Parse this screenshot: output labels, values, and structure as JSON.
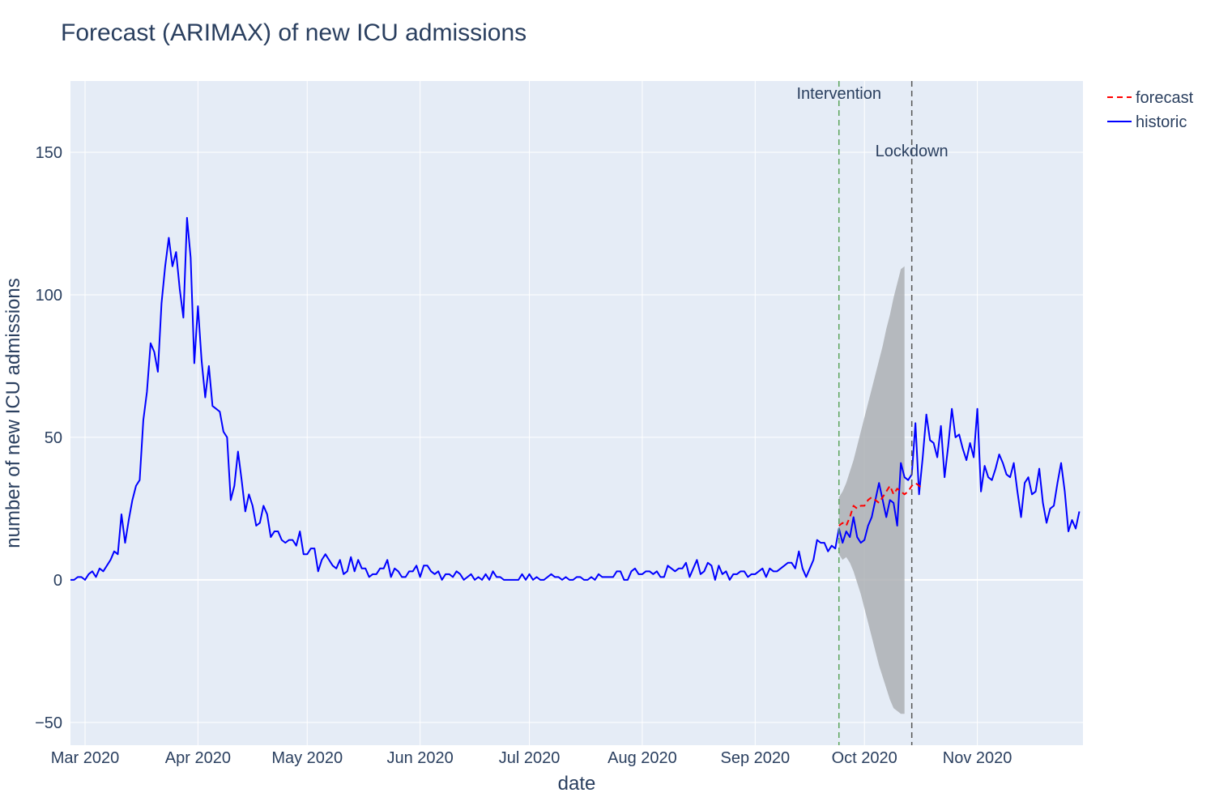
{
  "chart_data": {
    "type": "line",
    "title": "Forecast (ARIMAX) of new ICU admissions",
    "xlabel": "date",
    "ylabel": "number of new ICU admissions",
    "x_start_date": "2020-02-26",
    "ylim": [
      -58,
      175
    ],
    "y_ticks": [
      -50,
      0,
      50,
      100,
      150
    ],
    "y_tick_labels": [
      "−50",
      "0",
      "50",
      "100",
      "150"
    ],
    "x_ticks": [
      {
        "date": "2020-03-01",
        "label": "Mar 2020"
      },
      {
        "date": "2020-04-01",
        "label": "Apr 2020"
      },
      {
        "date": "2020-05-01",
        "label": "May 2020"
      },
      {
        "date": "2020-06-01",
        "label": "Jun 2020"
      },
      {
        "date": "2020-07-01",
        "label": "Jul 2020"
      },
      {
        "date": "2020-08-01",
        "label": "Aug 2020"
      },
      {
        "date": "2020-09-01",
        "label": "Sep 2020"
      },
      {
        "date": "2020-10-01",
        "label": "Oct 2020"
      },
      {
        "date": "2020-11-01",
        "label": "Nov 2020"
      }
    ],
    "xlim": [
      "2020-02-26",
      "2020-11-30"
    ],
    "grid": true,
    "legend_position": "top-right",
    "series": [
      {
        "name": "historic",
        "color": "#0000ff",
        "style": "solid",
        "start_date": "2020-02-26",
        "values": [
          0,
          0,
          1,
          1,
          0,
          2,
          3,
          1,
          4,
          3,
          5,
          7,
          10,
          9,
          23,
          13,
          21,
          28,
          33,
          35,
          56,
          66,
          83,
          80,
          73,
          97,
          110,
          120,
          110,
          115,
          102,
          92,
          127,
          113,
          76,
          96,
          77,
          64,
          75,
          61,
          60,
          59,
          52,
          50,
          28,
          33,
          45,
          35,
          24,
          30,
          26,
          19,
          20,
          26,
          23,
          15,
          17,
          17,
          14,
          13,
          14,
          14,
          12,
          17,
          9,
          9,
          11,
          11,
          3,
          7,
          9,
          7,
          5,
          4,
          7,
          2,
          3,
          8,
          3,
          7,
          4,
          4,
          1,
          2,
          2,
          4,
          4,
          7,
          1,
          4,
          3,
          1,
          1,
          3,
          3,
          5,
          1,
          5,
          5,
          3,
          2,
          3,
          0,
          2,
          2,
          1,
          3,
          2,
          0,
          1,
          2,
          0,
          1,
          0,
          2,
          0,
          3,
          1,
          1,
          0,
          0,
          0,
          0,
          0,
          2,
          0,
          2,
          0,
          1,
          0,
          0,
          1,
          2,
          1,
          1,
          0,
          1,
          0,
          0,
          1,
          1,
          0,
          0,
          1,
          0,
          2,
          1,
          1,
          1,
          1,
          3,
          3,
          0,
          0,
          3,
          4,
          2,
          2,
          3,
          3,
          2,
          3,
          1,
          1,
          5,
          4,
          3,
          4,
          4,
          6,
          1,
          4,
          7,
          2,
          3,
          6,
          5,
          0,
          5,
          2,
          3,
          0,
          2,
          2,
          3,
          3,
          1,
          2,
          2,
          3,
          4,
          1,
          4,
          3,
          3,
          4,
          5,
          6,
          6,
          4,
          10,
          4,
          1,
          4,
          7,
          14,
          13,
          13,
          10,
          12,
          11,
          18,
          13,
          17,
          15,
          22,
          15,
          13,
          14,
          19,
          22,
          28,
          34,
          28,
          22,
          28,
          27,
          19,
          41,
          36,
          35,
          37,
          55,
          30,
          43,
          58,
          49,
          48,
          43,
          54,
          36,
          47,
          60,
          50,
          51,
          46,
          42,
          48,
          43,
          60,
          31,
          40,
          36,
          35,
          39,
          44,
          41,
          37,
          36,
          41,
          31,
          22,
          34,
          36,
          30,
          31,
          39,
          27,
          20,
          25,
          26,
          34,
          41,
          31,
          17,
          21,
          18,
          24
        ]
      },
      {
        "name": "forecast",
        "color": "#ff0000",
        "style": "dashed",
        "start_date": "2020-09-24",
        "values": [
          19,
          20,
          19,
          22,
          26,
          25,
          26,
          26,
          28,
          29,
          28,
          27,
          29,
          31,
          33,
          30,
          32,
          31,
          30,
          31,
          33,
          34,
          33,
          32
        ]
      }
    ],
    "confidence_band": {
      "color": "#a9acb0",
      "start_date": "2020-09-24",
      "upper": [
        29,
        31,
        34,
        38,
        42,
        47,
        52,
        57,
        62,
        67,
        72,
        77,
        82,
        88,
        93,
        99,
        104,
        109,
        110
      ],
      "lower": [
        9,
        7,
        8,
        6,
        3,
        -1,
        -5,
        -10,
        -15,
        -20,
        -25,
        -30,
        -34,
        -38,
        -42,
        -45,
        -46,
        -47,
        -47
      ]
    },
    "vlines": [
      {
        "date": "2020-09-24",
        "label": "Intervention",
        "color": "#5aa55a",
        "label_level": "high"
      },
      {
        "date": "2020-10-14",
        "label": "Lockdown",
        "color": "#555555",
        "label_level": "low"
      }
    ]
  }
}
